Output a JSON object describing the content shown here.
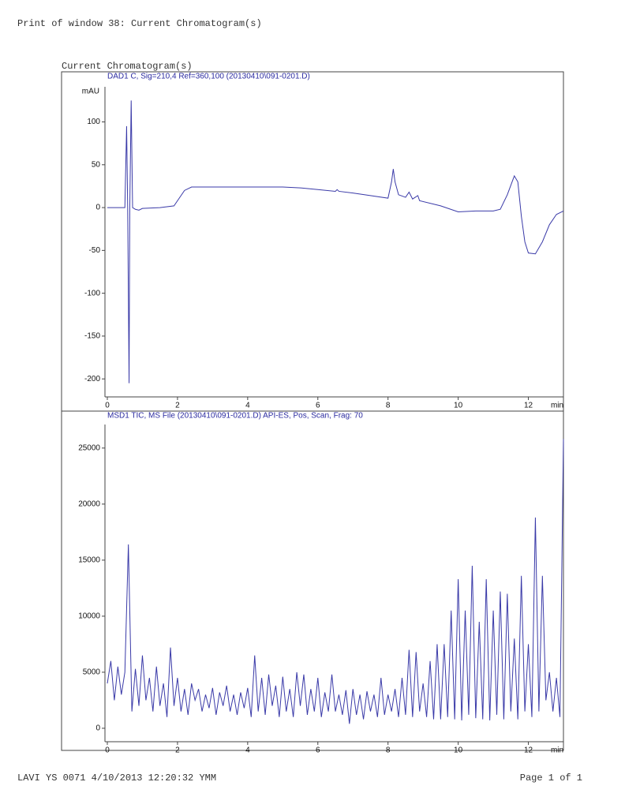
{
  "header": "Print of window 38: Current Chromatogram(s)",
  "section_title": "Current Chromatogram(s)",
  "footer": {
    "left": "LAVI YS 0071 4/10/2013 12:20:32  YMM",
    "right": "Page 1 of 1"
  },
  "chart_data": [
    {
      "type": "line",
      "subtitle": "DAD1 C, Sig=210,4 Ref=360,100 (20130410\\091-0201.D)",
      "y_label": "mAU",
      "x_label": "min",
      "color": "#3a3aa8",
      "xlim": [
        0,
        13
      ],
      "xticks": [
        0,
        2,
        4,
        6,
        8,
        10,
        12
      ],
      "ylim": [
        -221,
        141
      ],
      "yticks": [
        -200,
        -150,
        -100,
        -50,
        0,
        50,
        100
      ],
      "x": [
        0,
        0.5,
        0.55,
        0.58,
        0.62,
        0.64,
        0.68,
        0.72,
        0.8,
        0.9,
        1.0,
        1.5,
        1.9,
        2.0,
        2.2,
        2.4,
        3,
        4,
        5,
        5.5,
        6,
        6.5,
        6.55,
        6.6,
        7,
        7.5,
        8.0,
        8.1,
        8.15,
        8.2,
        8.3,
        8.5,
        8.6,
        8.7,
        8.85,
        8.9,
        9.5,
        10,
        10.5,
        11,
        11.2,
        11.4,
        11.6,
        11.7,
        11.8,
        11.9,
        12.0,
        12.2,
        12.4,
        12.6,
        12.8,
        13
      ],
      "values": [
        0,
        0,
        95,
        0,
        -205,
        0,
        125,
        0,
        -2,
        -3,
        -1,
        0,
        2,
        8,
        20,
        24,
        24,
        24,
        24,
        23,
        21,
        19,
        21,
        19,
        17,
        14,
        11,
        30,
        45,
        30,
        15,
        12,
        18,
        10,
        14,
        8,
        2,
        -5,
        -4,
        -4,
        -2,
        15,
        37,
        30,
        -10,
        -40,
        -53,
        -54,
        -40,
        -20,
        -8,
        -4
      ]
    },
    {
      "type": "line",
      "subtitle": "MSD1 TIC, MS File (20130410\\091-0201.D)    API-ES, Pos, Scan, Frag: 70",
      "x_label": "min",
      "color": "#3a3aa8",
      "xlim": [
        0,
        13
      ],
      "xticks": [
        0,
        2,
        4,
        6,
        8,
        10,
        12
      ],
      "ylim": [
        -1200,
        27100
      ],
      "yticks": [
        0,
        5000,
        10000,
        15000,
        20000,
        25000
      ],
      "x": [
        0.0,
        0.1,
        0.2,
        0.3,
        0.4,
        0.5,
        0.6,
        0.7,
        0.8,
        0.9,
        1.0,
        1.1,
        1.2,
        1.3,
        1.4,
        1.5,
        1.6,
        1.7,
        1.8,
        1.9,
        2.0,
        2.1,
        2.2,
        2.3,
        2.4,
        2.5,
        2.6,
        2.7,
        2.8,
        2.9,
        3.0,
        3.1,
        3.2,
        3.3,
        3.4,
        3.5,
        3.6,
        3.7,
        3.8,
        3.9,
        4.0,
        4.1,
        4.2,
        4.3,
        4.4,
        4.5,
        4.6,
        4.7,
        4.8,
        4.9,
        5.0,
        5.1,
        5.2,
        5.3,
        5.4,
        5.5,
        5.6,
        5.7,
        5.8,
        5.9,
        6.0,
        6.1,
        6.2,
        6.3,
        6.4,
        6.5,
        6.6,
        6.7,
        6.8,
        6.9,
        7.0,
        7.1,
        7.2,
        7.3,
        7.4,
        7.5,
        7.6,
        7.7,
        7.8,
        7.9,
        8.0,
        8.1,
        8.2,
        8.3,
        8.4,
        8.5,
        8.6,
        8.7,
        8.8,
        8.9,
        9.0,
        9.1,
        9.2,
        9.3,
        9.4,
        9.5,
        9.6,
        9.7,
        9.8,
        9.9,
        10.0,
        10.1,
        10.2,
        10.3,
        10.4,
        10.5,
        10.6,
        10.7,
        10.8,
        10.9,
        11.0,
        11.1,
        11.2,
        11.3,
        11.4,
        11.5,
        11.6,
        11.7,
        11.8,
        11.9,
        12.0,
        12.1,
        12.2,
        12.3,
        12.4,
        12.5,
        12.6,
        12.7,
        12.8,
        12.9,
        13.0
      ],
      "values": [
        4000,
        6000,
        2500,
        5500,
        3000,
        5000,
        16400,
        1500,
        5300,
        2000,
        6500,
        2500,
        4500,
        1500,
        5500,
        2000,
        4000,
        1000,
        7200,
        2000,
        4500,
        1500,
        3500,
        1200,
        4000,
        2500,
        3500,
        1500,
        3000,
        1800,
        3600,
        1200,
        3200,
        2000,
        3800,
        1500,
        3000,
        1200,
        3200,
        1800,
        3600,
        1000,
        6500,
        1500,
        4500,
        1200,
        4800,
        2000,
        3800,
        1000,
        4600,
        1500,
        3500,
        1000,
        5000,
        2000,
        4800,
        1200,
        3500,
        1500,
        4500,
        1000,
        3200,
        1500,
        4800,
        1500,
        3000,
        1200,
        3400,
        400,
        3500,
        1200,
        3000,
        800,
        3300,
        1500,
        3000,
        1000,
        4500,
        1200,
        3000,
        1500,
        3500,
        1000,
        4500,
        1200,
        7000,
        1000,
        6800,
        1500,
        4000,
        1000,
        6000,
        800,
        7500,
        800,
        7500,
        1000,
        10500,
        800,
        13300,
        700,
        10500,
        1200,
        14500,
        900,
        9500,
        800,
        13300,
        700,
        10500,
        1200,
        12200,
        800,
        12000,
        1500,
        8000,
        800,
        13600,
        1500,
        7500,
        1000,
        18800,
        1500,
        13600,
        2500,
        5000,
        1500,
        4500,
        1000,
        25800
      ]
    }
  ]
}
